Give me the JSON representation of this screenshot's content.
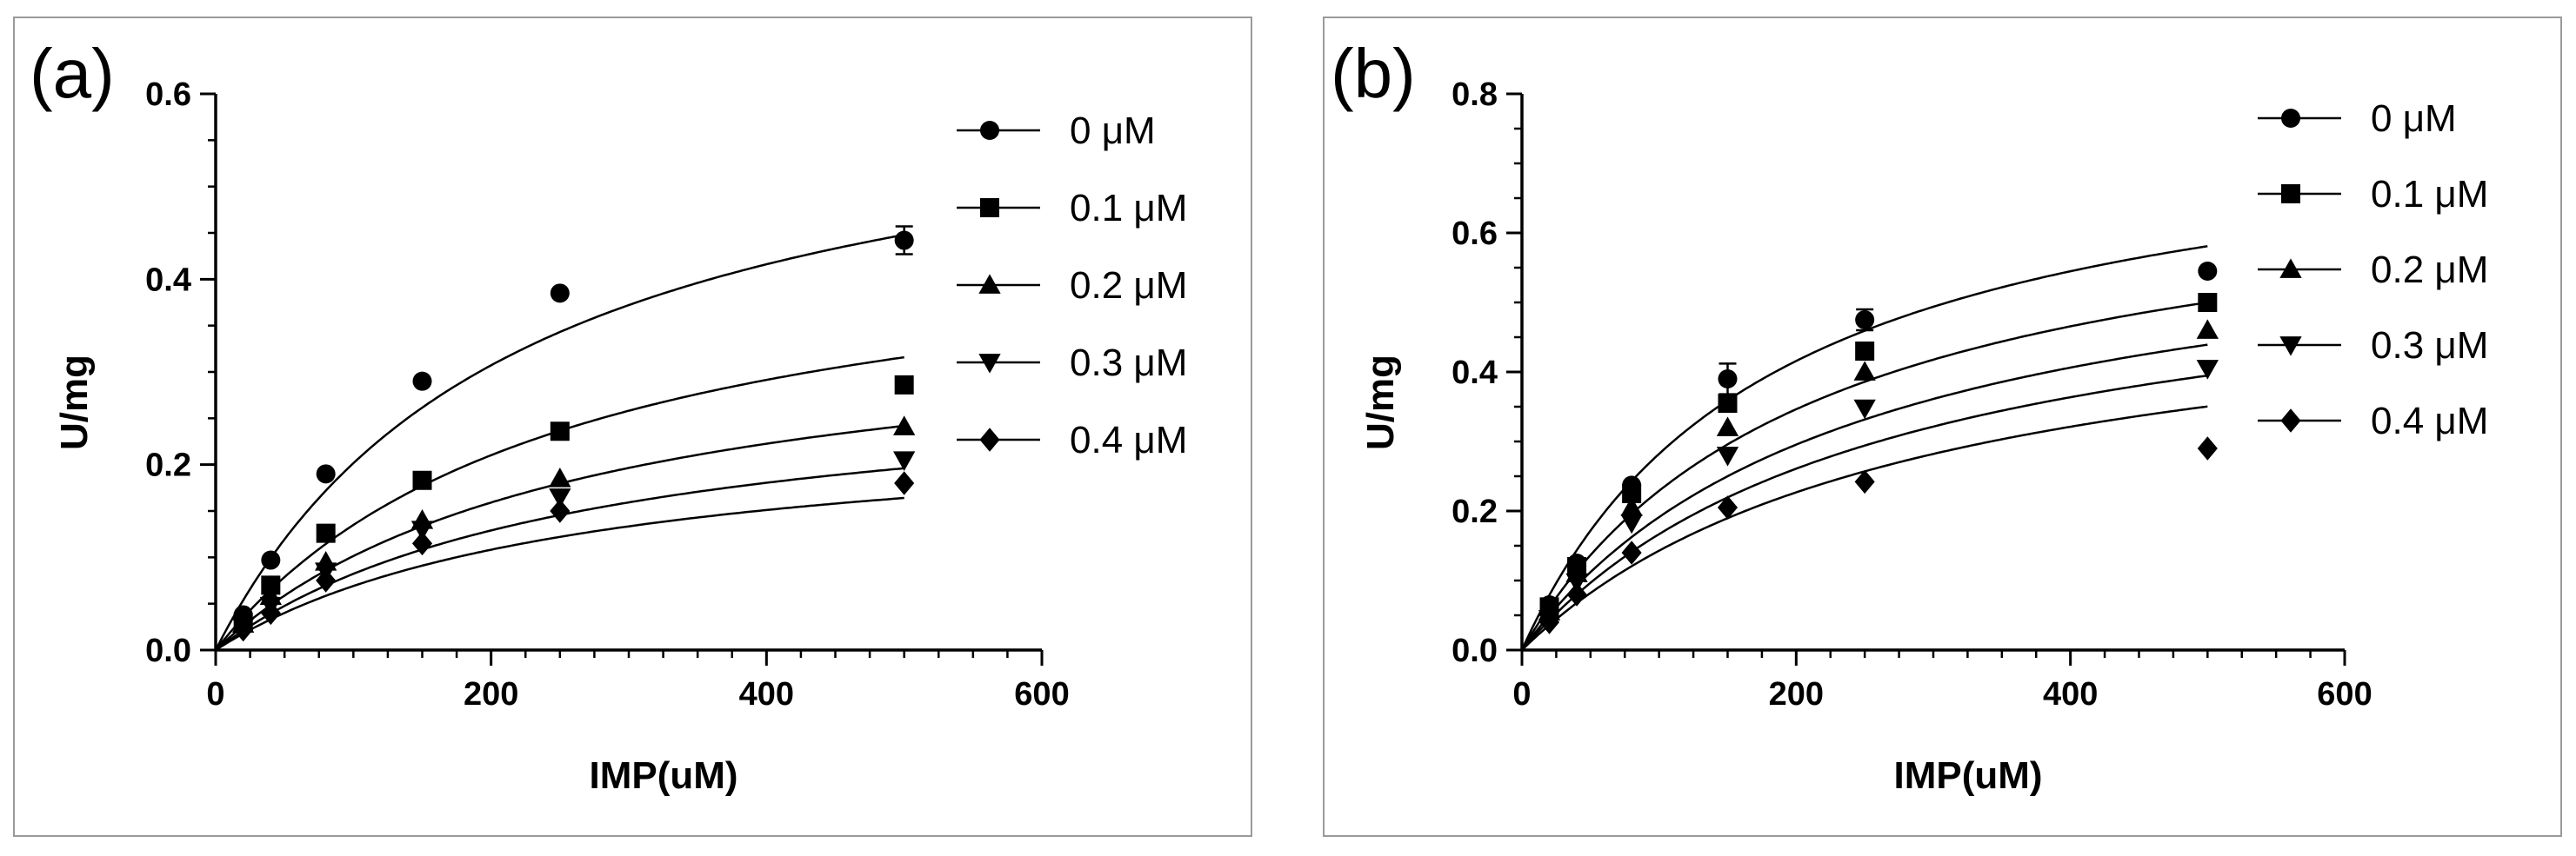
{
  "chart_data": [
    {
      "panel_label": "(a)",
      "type": "scatter",
      "xlabel": "IMP(uM)",
      "ylabel": "U/mg",
      "xlim": [
        0,
        600
      ],
      "ylim": [
        0,
        0.6
      ],
      "x_ticks": [
        "0",
        "200",
        "400",
        "600"
      ],
      "y_ticks": [
        "0.0",
        "0.2",
        "0.4",
        "0.6"
      ],
      "x_tick_values": [
        0,
        200,
        400,
        600
      ],
      "y_tick_values": [
        0,
        0.2,
        0.4,
        0.6
      ],
      "x_minor_step": 25,
      "y_minor_step": 0.05,
      "legend_position": "top-right",
      "series": [
        {
          "name": "0 μM",
          "marker": "circle",
          "x": [
            20,
            40,
            80,
            150,
            250,
            500
          ],
          "y": [
            0.038,
            0.097,
            0.19,
            0.29,
            0.385,
            0.442
          ],
          "err": [
            0,
            0,
            0,
            0,
            0,
            0.015
          ],
          "fit_vmax": 0.645,
          "fit_km": 220
        },
        {
          "name": "0.1 μM",
          "marker": "square",
          "x": [
            20,
            40,
            80,
            150,
            250,
            500
          ],
          "y": [
            0.03,
            0.07,
            0.126,
            0.183,
            0.236,
            0.286
          ],
          "err": [
            0,
            0,
            0,
            0,
            0,
            0
          ],
          "fit_vmax": 0.475,
          "fit_km": 252
        },
        {
          "name": "0.2 μM",
          "marker": "triangle-up",
          "x": [
            20,
            40,
            80,
            150,
            250,
            500
          ],
          "y": [
            0.028,
            0.058,
            0.095,
            0.14,
            0.185,
            0.241
          ],
          "err": [
            0,
            0,
            0,
            0,
            0,
            0
          ],
          "fit_vmax": 0.37,
          "fit_km": 265
        },
        {
          "name": "0.3 μM",
          "marker": "triangle-down",
          "x": [
            20,
            40,
            80,
            150,
            250,
            500
          ],
          "y": [
            0.025,
            0.048,
            0.085,
            0.13,
            0.165,
            0.205
          ],
          "err": [
            0,
            0,
            0,
            0,
            0,
            0
          ],
          "fit_vmax": 0.3,
          "fit_km": 265
        },
        {
          "name": "0.4 μM",
          "marker": "diamond",
          "x": [
            20,
            40,
            80,
            150,
            250,
            500
          ],
          "y": [
            0.022,
            0.04,
            0.075,
            0.115,
            0.15,
            0.18
          ],
          "err": [
            0,
            0,
            0,
            0,
            0,
            0
          ],
          "fit_vmax": 0.25,
          "fit_km": 262
        }
      ]
    },
    {
      "panel_label": "(b)",
      "type": "scatter",
      "xlabel": "IMP(uM)",
      "ylabel": "U/mg",
      "xlim": [
        0,
        600
      ],
      "ylim": [
        0,
        0.8
      ],
      "x_ticks": [
        "0",
        "200",
        "400",
        "600"
      ],
      "y_ticks": [
        "0.0",
        "0.2",
        "0.4",
        "0.6",
        "0.8"
      ],
      "x_tick_values": [
        0,
        200,
        400,
        600
      ],
      "y_tick_values": [
        0,
        0.2,
        0.4,
        0.6,
        0.8
      ],
      "x_minor_step": 25,
      "y_minor_step": 0.05,
      "legend_position": "top-right",
      "series": [
        {
          "name": "0 μM",
          "marker": "circle",
          "x": [
            20,
            40,
            80,
            150,
            250,
            500
          ],
          "y": [
            0.065,
            0.125,
            0.237,
            0.39,
            0.475,
            0.545
          ],
          "err": [
            0,
            0,
            0,
            0.022,
            0.015,
            0
          ],
          "fit_vmax": 0.79,
          "fit_km": 180
        },
        {
          "name": "0.1 μM",
          "marker": "square",
          "x": [
            20,
            40,
            80,
            150,
            250,
            500
          ],
          "y": [
            0.062,
            0.12,
            0.225,
            0.355,
            0.43,
            0.5
          ],
          "err": [
            0,
            0,
            0,
            0,
            0,
            0
          ],
          "fit_vmax": 0.71,
          "fit_km": 210
        },
        {
          "name": "0.2 μM",
          "marker": "triangle-up",
          "x": [
            20,
            40,
            80,
            150,
            250,
            500
          ],
          "y": [
            0.055,
            0.11,
            0.205,
            0.32,
            0.4,
            0.46
          ],
          "err": [
            0,
            0,
            0,
            0,
            0,
            0
          ],
          "fit_vmax": 0.65,
          "fit_km": 240
        },
        {
          "name": "0.3 μM",
          "marker": "triangle-down",
          "x": [
            20,
            40,
            80,
            150,
            250,
            500
          ],
          "y": [
            0.045,
            0.098,
            0.183,
            0.28,
            0.348,
            0.405
          ],
          "err": [
            0,
            0,
            0,
            0,
            0,
            0
          ],
          "fit_vmax": 0.6,
          "fit_km": 260
        },
        {
          "name": "0.4 μM",
          "marker": "diamond",
          "x": [
            20,
            40,
            80,
            150,
            250,
            500
          ],
          "y": [
            0.04,
            0.08,
            0.14,
            0.205,
            0.242,
            0.29
          ],
          "err": [
            0,
            0,
            0,
            0,
            0,
            0
          ],
          "fit_vmax": 0.55,
          "fit_km": 285
        }
      ]
    }
  ]
}
